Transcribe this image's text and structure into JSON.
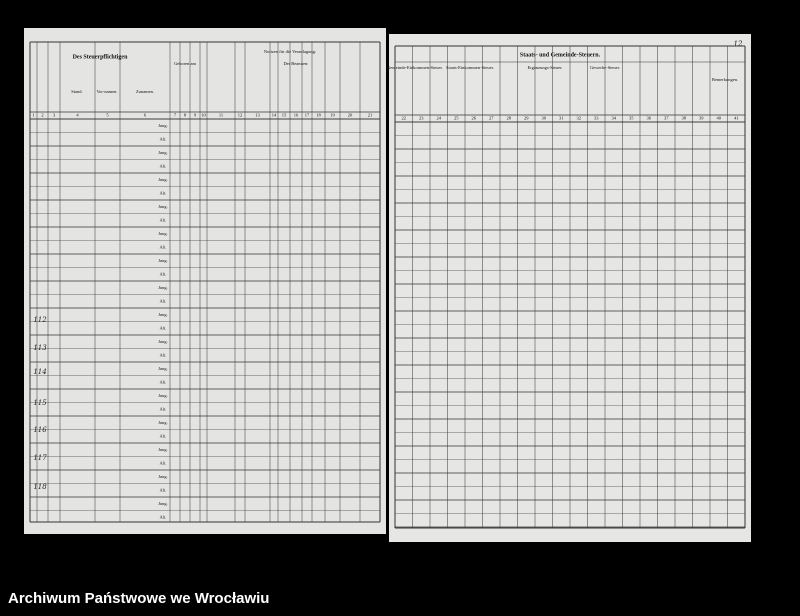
{
  "footer": "Archiwum Państwowe we Wrocławiu",
  "left_page": {
    "heading": "Des Steuerpflichtigen",
    "columns": [
      "Stand.",
      "Vor-namen.",
      "Zunamen."
    ],
    "born": "Geboren am",
    "notes": "Notizen für die Veranlagung:",
    "officials": "Der Beamten:",
    "column_numbers": [
      "1",
      "2",
      "3",
      "4",
      "5",
      "6",
      "7",
      "8",
      "9",
      "10",
      "11",
      "12",
      "13",
      "14",
      "15",
      "16",
      "17",
      "18",
      "19",
      "20",
      "21"
    ],
    "row_marks": [
      "Jung.",
      "Alt."
    ],
    "entries": [
      "112",
      "113",
      "114",
      "115",
      "116",
      "117",
      "118"
    ]
  },
  "right_page": {
    "page_number": "12",
    "heading": "Staats- und Gemeinde-Steuern.",
    "groups": [
      "Gemeinde-Einkommen-Steuer.",
      "Staats-Einkommen-Steuer.",
      "Ergänzungs-Steuer.",
      "Gewerbe-Steuer."
    ],
    "remarks": "Bemerkungen.",
    "column_numbers": [
      "22",
      "23",
      "24",
      "25",
      "26",
      "27",
      "28",
      "29",
      "30",
      "31",
      "32",
      "33",
      "34",
      "35",
      "36",
      "37",
      "38",
      "39",
      "40",
      "41"
    ]
  }
}
